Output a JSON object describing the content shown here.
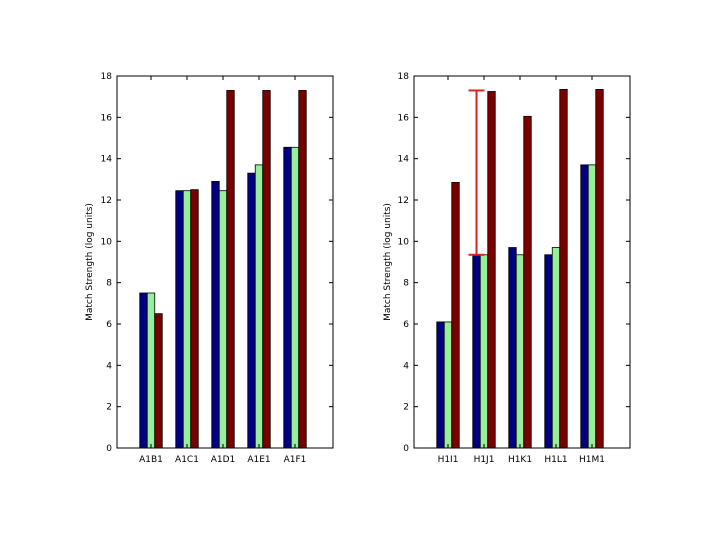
{
  "colors": {
    "series_1": "#000080",
    "series_2": "#99ee99",
    "series_3": "#7a0000",
    "error_bar": "#dd2222",
    "axis": "#000000"
  },
  "chart_data": [
    {
      "type": "bar",
      "ylabel": "Match Strength (log units)",
      "ylim": [
        0,
        18
      ],
      "yticks": [
        "0",
        "2",
        "4",
        "6",
        "8",
        "10",
        "12",
        "14",
        "16",
        "18"
      ],
      "categories": [
        "A1B1",
        "A1C1",
        "A1D1",
        "A1E1",
        "A1F1"
      ],
      "series": [
        {
          "values": [
            7.5,
            12.45,
            12.9,
            13.3,
            14.55
          ]
        },
        {
          "values": [
            7.5,
            12.45,
            12.45,
            13.7,
            14.55
          ]
        },
        {
          "values": [
            6.5,
            12.5,
            17.3,
            17.3,
            17.3
          ]
        }
      ],
      "grid": false,
      "legend": "none"
    },
    {
      "type": "bar",
      "ylabel": "Match Strength (log units)",
      "ylim": [
        0,
        18
      ],
      "yticks": [
        "0",
        "2",
        "4",
        "6",
        "8",
        "10",
        "12",
        "14",
        "16",
        "18"
      ],
      "categories": [
        "H1I1",
        "H1J1",
        "H1K1",
        "H1L1",
        "H1M1"
      ],
      "series": [
        {
          "values": [
            6.1,
            9.35,
            9.7,
            9.35,
            13.7
          ]
        },
        {
          "values": [
            6.1,
            9.35,
            9.35,
            9.7,
            13.7
          ]
        },
        {
          "values": [
            12.85,
            17.25,
            16.05,
            17.35,
            17.35
          ]
        }
      ],
      "error_bar": {
        "category": "H1J1",
        "low": 9.35,
        "high": 17.3
      },
      "grid": false,
      "legend": "none"
    }
  ]
}
